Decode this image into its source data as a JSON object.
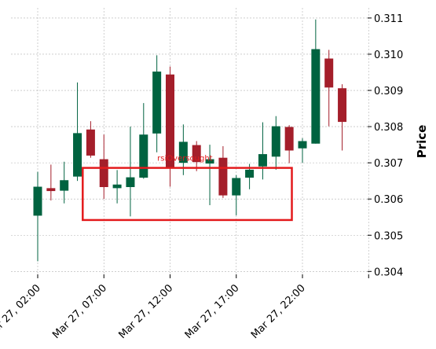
{
  "chart_data": {
    "type": "candlestick",
    "ylabel": "Price",
    "ylim": [
      0.30392,
      0.31128
    ],
    "x_ticks": [
      "Mar 27, 02:00",
      "Mar 27, 07:00",
      "Mar 27, 12:00",
      "Mar 27, 17:00",
      "Mar 27, 22:00"
    ],
    "x_tick_hours": [
      2,
      7,
      12,
      17,
      22,
      27
    ],
    "y_ticks": [
      0.304,
      0.305,
      0.306,
      0.307,
      0.308,
      0.309,
      0.31,
      0.311
    ],
    "y_tick_labels": [
      "0.304",
      "0.305",
      "0.306",
      "0.307",
      "0.308",
      "0.309",
      "0.310",
      "0.311"
    ],
    "grid": true,
    "colors": {
      "up": "#006340",
      "down": "#a41e2a",
      "annotation": "#e31a1c"
    },
    "candles": [
      {
        "h": 2,
        "o": 0.30554,
        "hi": 0.30675,
        "lo": 0.30428,
        "c": 0.30634
      },
      {
        "h": 3,
        "o": 0.3063,
        "hi": 0.30695,
        "lo": 0.30596,
        "c": 0.30622
      },
      {
        "h": 4,
        "o": 0.30623,
        "hi": 0.30703,
        "lo": 0.30588,
        "c": 0.30652
      },
      {
        "h": 5,
        "o": 0.30662,
        "hi": 0.30922,
        "lo": 0.3065,
        "c": 0.30782
      },
      {
        "h": 6,
        "o": 0.30792,
        "hi": 0.30815,
        "lo": 0.30714,
        "c": 0.3072
      },
      {
        "h": 7,
        "o": 0.3071,
        "hi": 0.30778,
        "lo": 0.306,
        "c": 0.30633
      },
      {
        "h": 8,
        "o": 0.3063,
        "hi": 0.3068,
        "lo": 0.30588,
        "c": 0.3064
      },
      {
        "h": 9,
        "o": 0.30633,
        "hi": 0.308,
        "lo": 0.30552,
        "c": 0.3066
      },
      {
        "h": 10,
        "o": 0.30659,
        "hi": 0.30865,
        "lo": 0.30656,
        "c": 0.30778
      },
      {
        "h": 11,
        "o": 0.30781,
        "hi": 0.30997,
        "lo": 0.30729,
        "c": 0.30952
      },
      {
        "h": 12,
        "o": 0.30944,
        "hi": 0.30966,
        "lo": 0.30634,
        "c": 0.30686
      },
      {
        "h": 13,
        "o": 0.307,
        "hi": 0.30806,
        "lo": 0.30666,
        "c": 0.30758
      },
      {
        "h": 14,
        "o": 0.30749,
        "hi": 0.3076,
        "lo": 0.30677,
        "c": 0.30702
      },
      {
        "h": 15,
        "o": 0.30698,
        "hi": 0.3075,
        "lo": 0.30583,
        "c": 0.3071
      },
      {
        "h": 16,
        "o": 0.30714,
        "hi": 0.30746,
        "lo": 0.30603,
        "c": 0.3061
      },
      {
        "h": 17,
        "o": 0.3061,
        "hi": 0.30666,
        "lo": 0.30555,
        "c": 0.30658
      },
      {
        "h": 18,
        "o": 0.30659,
        "hi": 0.30697,
        "lo": 0.30627,
        "c": 0.30681
      },
      {
        "h": 19,
        "o": 0.3069,
        "hi": 0.30812,
        "lo": 0.30654,
        "c": 0.30724
      },
      {
        "h": 20,
        "o": 0.30717,
        "hi": 0.30829,
        "lo": 0.30681,
        "c": 0.30801
      },
      {
        "h": 21,
        "o": 0.30799,
        "hi": 0.30804,
        "lo": 0.30699,
        "c": 0.30734
      },
      {
        "h": 22,
        "o": 0.3074,
        "hi": 0.30768,
        "lo": 0.307,
        "c": 0.3076
      },
      {
        "h": 23,
        "o": 0.30753,
        "hi": 0.31096,
        "lo": 0.30753,
        "c": 0.31014
      },
      {
        "h": 24,
        "o": 0.30988,
        "hi": 0.31012,
        "lo": 0.30801,
        "c": 0.30908
      },
      {
        "h": 25,
        "o": 0.30906,
        "hi": 0.30917,
        "lo": 0.30734,
        "c": 0.30813
      }
    ],
    "annotation_box": {
      "label": "rsiOversought",
      "x_from_hour": 5.4,
      "x_to_hour": 21.2,
      "y_from": 0.30542,
      "y_to": 0.30686
    }
  }
}
